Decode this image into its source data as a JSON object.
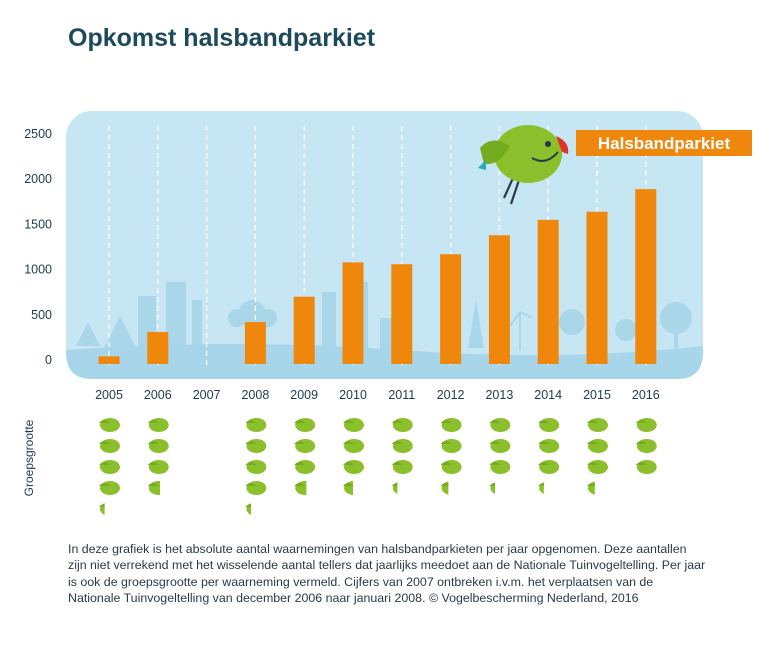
{
  "chart_data": {
    "type": "bar",
    "title": "Opkomst halsbandparkiet",
    "legend_label": "Halsbandparkiet",
    "categories": [
      "2005",
      "2006",
      "2007",
      "2008",
      "2009",
      "2010",
      "2011",
      "2012",
      "2013",
      "2014",
      "2015",
      "2016"
    ],
    "values": [
      40,
      310,
      null,
      420,
      700,
      1080,
      1060,
      1170,
      1380,
      1550,
      1640,
      1890
    ],
    "ylim": [
      0,
      2500
    ],
    "yticks": [
      0,
      500,
      1000,
      1500,
      2000,
      2500
    ],
    "ytick_labels": [
      "0",
      "500",
      "1000",
      "1500",
      "2000",
      "2500"
    ],
    "xlabel": "",
    "ylabel": "",
    "group_size_label": "Groepsgrootte",
    "group_sizes": [
      4.3,
      3.6,
      null,
      4.3,
      3.6,
      3.5,
      3.3,
      3.4,
      3.3,
      3.3,
      3.4,
      3.0
    ],
    "bar_color": "#f0870d",
    "bird_color": "#8cbf2c"
  },
  "caption": "In deze grafiek is het absolute aantal waarnemingen van halsbandparkieten per jaar opgenomen. Deze aantallen zijn niet verrekend met het wisselende aantal tellers dat jaarlijks meedoet aan de Nationale Tuinvogeltelling. Per jaar is ook de groepsgrootte per waarneming vermeld. Cijfers van 2007 ontbreken i.v.m. het verplaatsen van de Nationale Tuinvogeltelling van december 2006 naar januari 2008. © Vogelbescherming Nederland, 2016"
}
